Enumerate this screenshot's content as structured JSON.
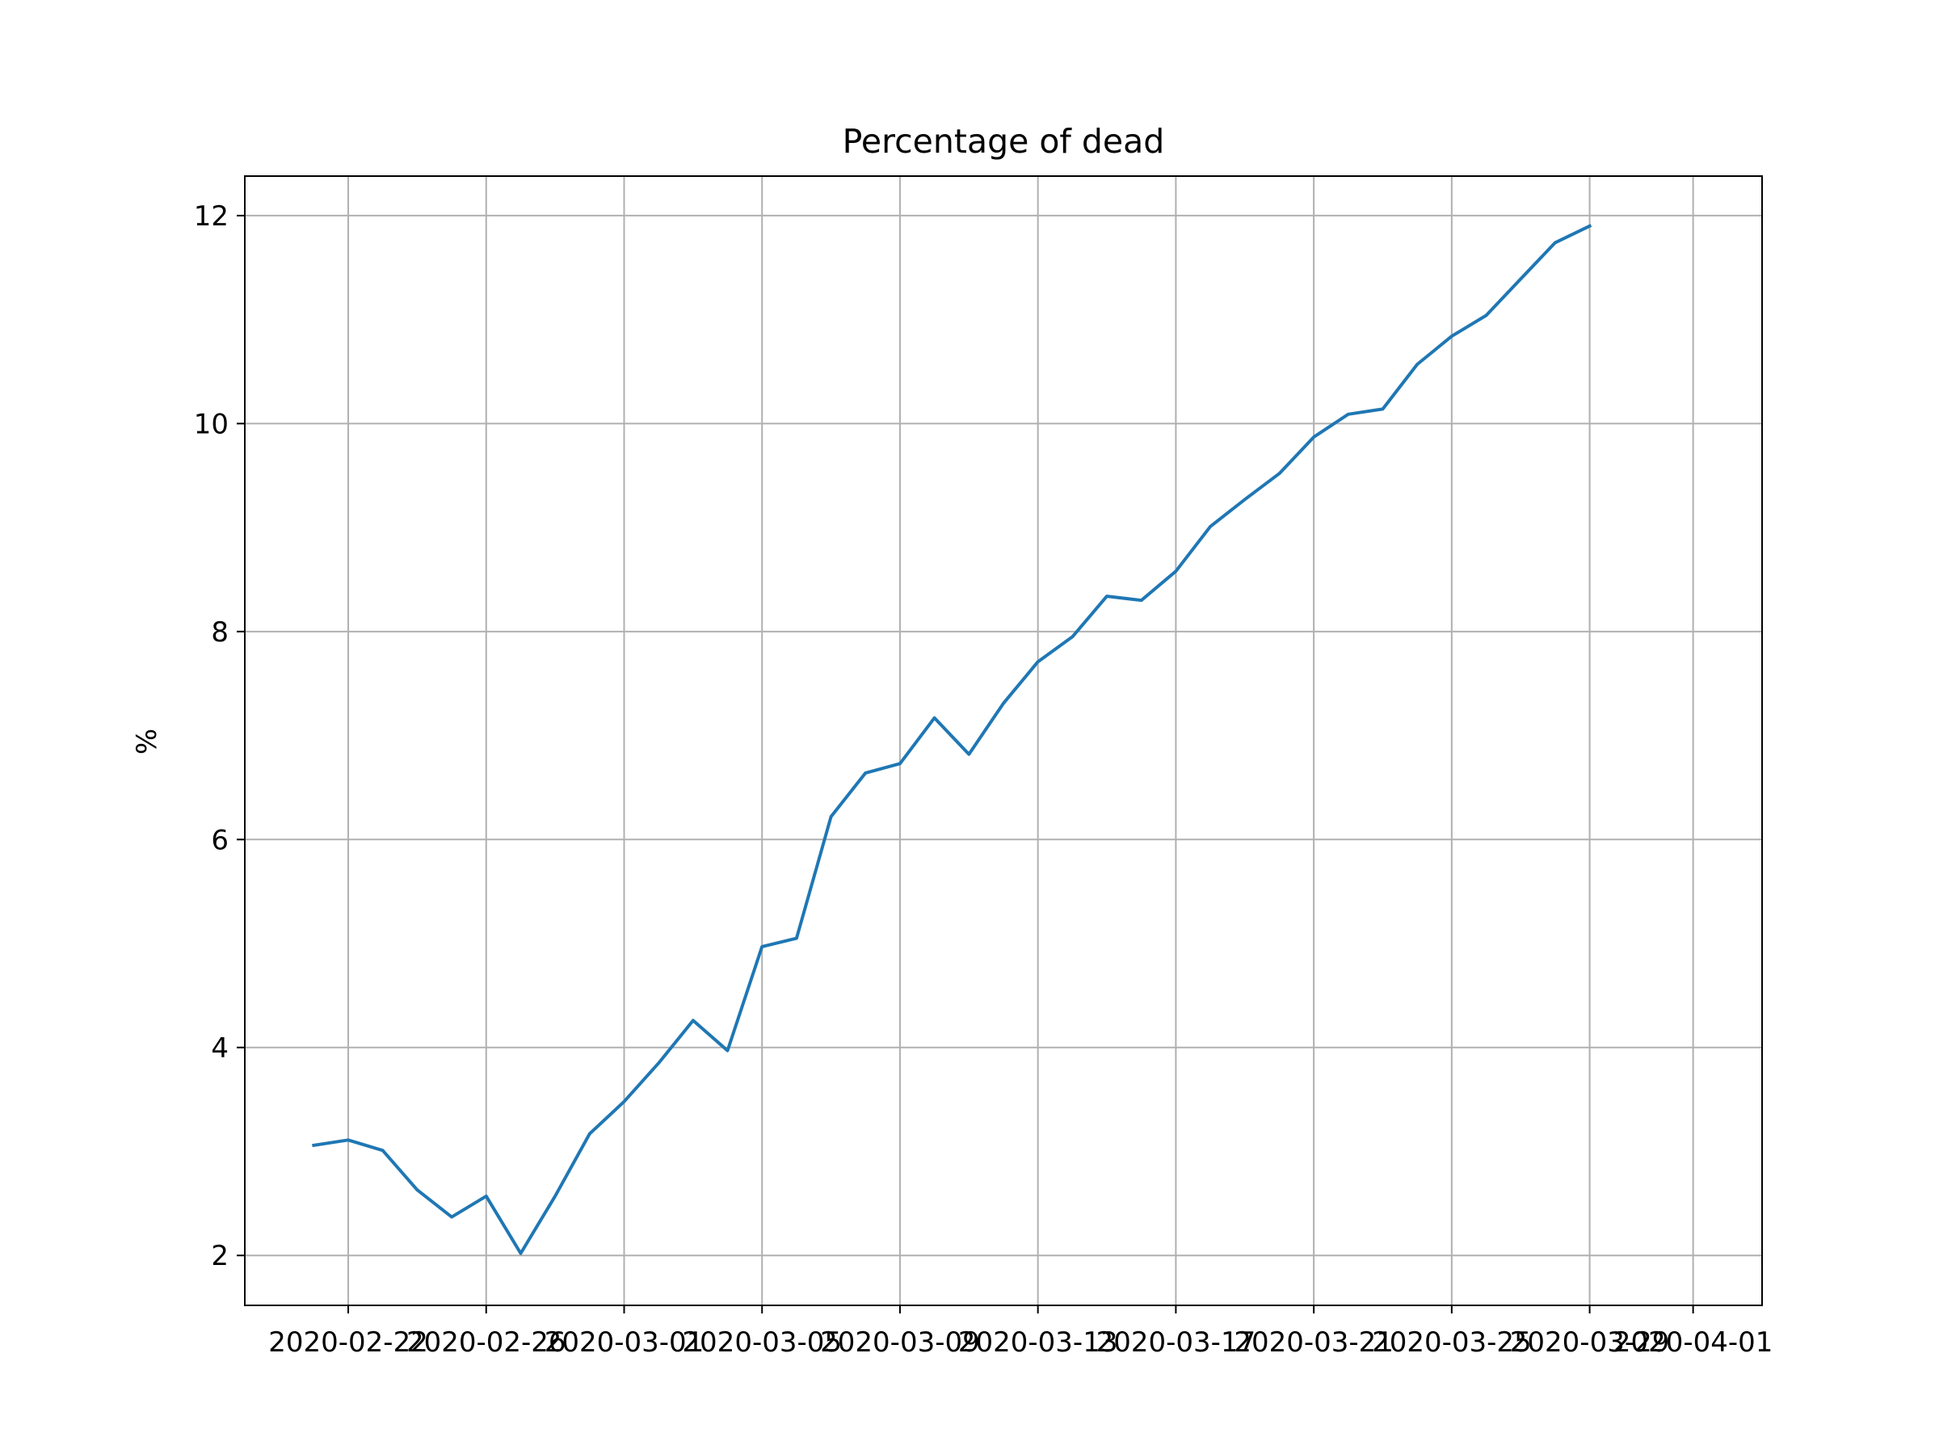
{
  "chart_data": {
    "type": "line",
    "title": "Percentage of dead",
    "xlabel": "",
    "ylabel": "%",
    "grid": true,
    "legend": "none",
    "ylim": [
      1.52,
      12.38
    ],
    "xlim": [
      "2020-02-19",
      "2020-04-03"
    ],
    "y_ticks": [
      2,
      4,
      6,
      8,
      10,
      12
    ],
    "x_ticks": [
      "2020-02-22",
      "2020-02-26",
      "2020-03-01",
      "2020-03-05",
      "2020-03-09",
      "2020-03-13",
      "2020-03-17",
      "2020-03-21",
      "2020-03-25",
      "2020-03-29",
      "2020-04-01"
    ],
    "series": [
      {
        "color": "#1f77b4",
        "x": [
          "2020-02-21",
          "2020-02-22",
          "2020-02-23",
          "2020-02-24",
          "2020-02-25",
          "2020-02-26",
          "2020-02-27",
          "2020-02-28",
          "2020-02-29",
          "2020-03-01",
          "2020-03-02",
          "2020-03-03",
          "2020-03-04",
          "2020-03-05",
          "2020-03-06",
          "2020-03-07",
          "2020-03-08",
          "2020-03-09",
          "2020-03-10",
          "2020-03-11",
          "2020-03-12",
          "2020-03-13",
          "2020-03-14",
          "2020-03-15",
          "2020-03-16",
          "2020-03-17",
          "2020-03-18",
          "2020-03-19",
          "2020-03-20",
          "2020-03-21",
          "2020-03-22",
          "2020-03-23",
          "2020-03-24",
          "2020-03-25",
          "2020-03-26",
          "2020-03-27",
          "2020-03-28",
          "2020-03-29",
          "2020-03-30",
          "2020-03-31",
          "2020-04-01"
        ],
        "values": [
          3.06,
          3.11,
          3.01,
          2.63,
          2.37,
          2.57,
          2.02,
          2.57,
          3.17,
          3.48,
          3.85,
          4.26,
          3.97,
          4.97,
          5.05,
          6.22,
          6.64,
          6.73,
          7.17,
          6.82,
          7.31,
          7.71,
          7.95,
          8.34,
          8.3,
          8.58,
          9.01,
          9.27,
          9.52,
          9.87,
          10.09,
          10.14,
          10.57,
          10.84,
          11.04,
          11.39,
          11.74,
          11.9,
          null,
          null,
          null
        ]
      }
    ]
  }
}
